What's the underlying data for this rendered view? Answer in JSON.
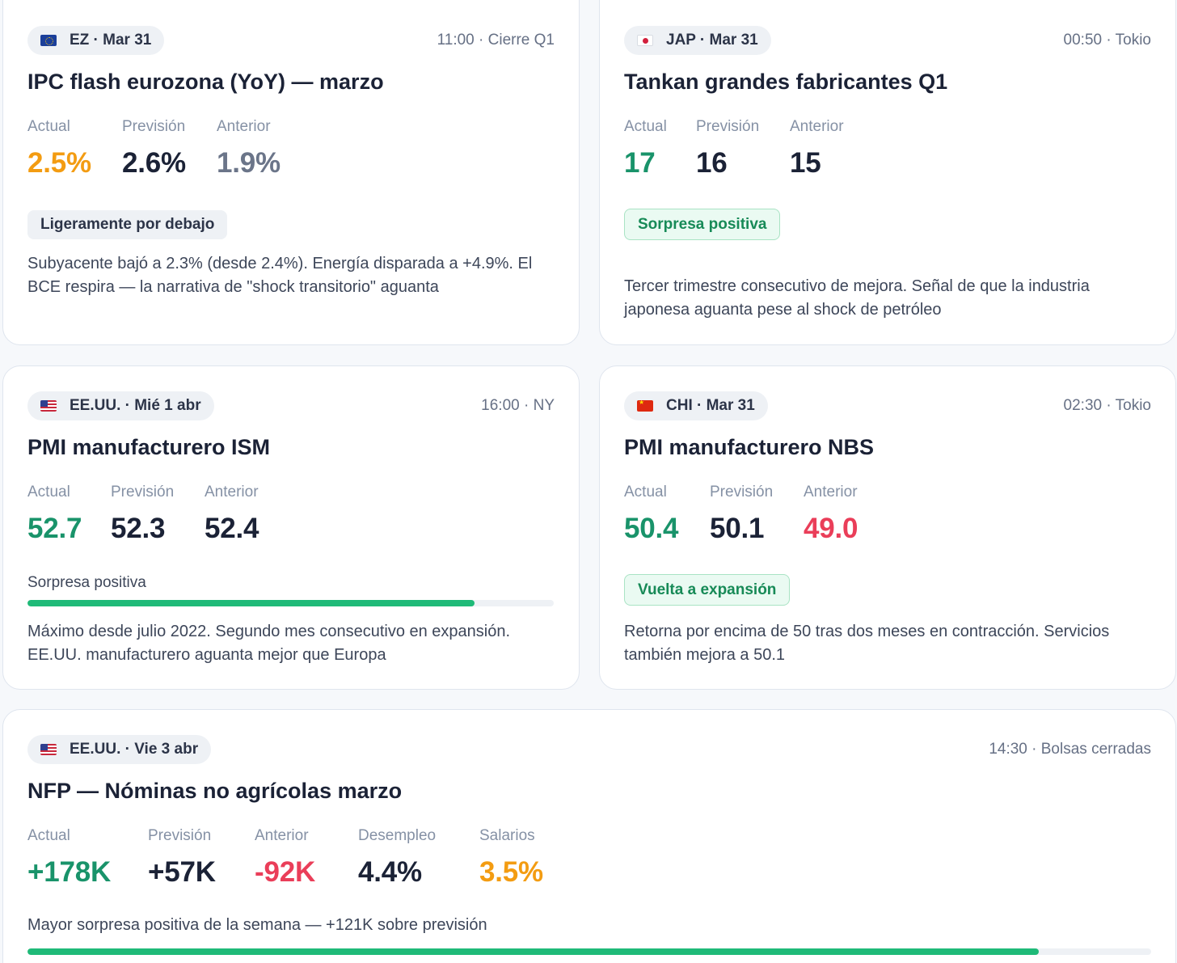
{
  "cards": {
    "ipc": {
      "region": "EZ · Mar 31",
      "meta": "11:00 · Cierre Q1",
      "title": "IPC flash eurozona (YoY) — marzo",
      "stats": [
        {
          "label": "Actual",
          "value": "2.5%"
        },
        {
          "label": "Previsión",
          "value": "2.6%"
        },
        {
          "label": "Anterior",
          "value": "1.9%"
        }
      ],
      "badge": "Ligeramente por debajo",
      "note": "Subyacente bajó a 2.3% (desde 2.4%). Energía disparada a +4.9%. El BCE respira — la narrativa de \"shock transitorio\" aguanta"
    },
    "tankan": {
      "region": "JAP · Mar 31",
      "meta": "00:50 · Tokio",
      "title": "Tankan grandes fabricantes Q1",
      "stats": [
        {
          "label": "Actual",
          "value": "17"
        },
        {
          "label": "Previsión",
          "value": "16"
        },
        {
          "label": "Anterior",
          "value": "15"
        }
      ],
      "badge": "Sorpresa positiva",
      "note": "Tercer trimestre consecutivo de mejora. Señal de que la industria japonesa aguanta pese al shock de petróleo"
    },
    "ism": {
      "region": "EE.UU. · Mié 1 abr",
      "meta": "16:00 · NY",
      "title": "PMI manufacturero ISM",
      "stats": [
        {
          "label": "Actual",
          "value": "52.7"
        },
        {
          "label": "Previsión",
          "value": "52.3"
        },
        {
          "label": "Anterior",
          "value": "52.4"
        }
      ],
      "bar_label": "Sorpresa positiva",
      "bar_fraction": 0.85,
      "note": "Máximo desde julio 2022. Segundo mes consecutivo en expansión. EE.UU. manufacturero aguanta mejor que Europa"
    },
    "nbs": {
      "region": "CHI · Mar 31",
      "meta": "02:30 · Tokio",
      "title": "PMI manufacturero NBS",
      "stats": [
        {
          "label": "Actual",
          "value": "50.4"
        },
        {
          "label": "Previsión",
          "value": "50.1"
        },
        {
          "label": "Anterior",
          "value": "49.0"
        }
      ],
      "badge": "Vuelta a expansión",
      "note": "Retorna por encima de 50 tras dos meses en contracción. Servicios también mejora a 50.1"
    },
    "nfp": {
      "region": "EE.UU. · Vie 3 abr",
      "meta": "14:30 · Bolsas cerradas",
      "title": "NFP — Nóminas no agrícolas marzo",
      "stats": [
        {
          "label": "Actual",
          "value": "+178K"
        },
        {
          "label": "Previsión",
          "value": "+57K"
        },
        {
          "label": "Anterior",
          "value": "-92K"
        },
        {
          "label": "Desempleo",
          "value": "4.4%"
        },
        {
          "label": "Salarios",
          "value": "3.5%"
        }
      ],
      "bar_label": "Mayor sorpresa positiva de la semana — +121K sobre previsión",
      "bar_fraction": 0.9
    }
  }
}
